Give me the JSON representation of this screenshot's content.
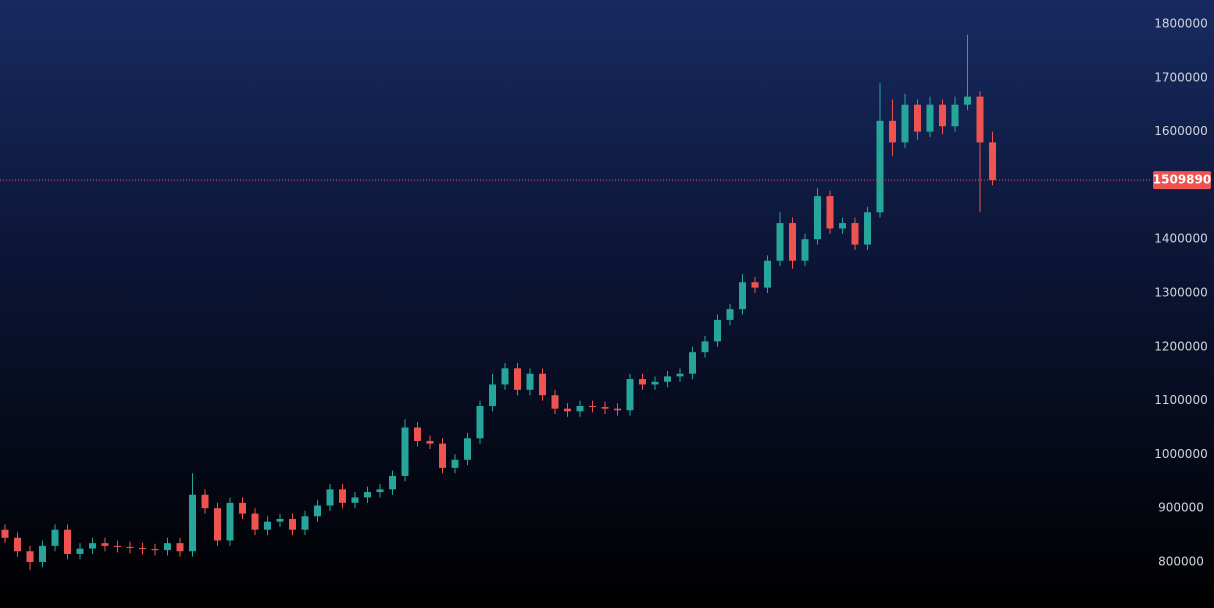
{
  "chart_data": {
    "type": "candlestick",
    "open": [
      860000,
      845000,
      820000,
      800000,
      830000,
      860000,
      815000,
      825000,
      835000,
      830000,
      828000,
      826000,
      824000,
      822000,
      835000,
      820000,
      925000,
      900000,
      840000,
      910000,
      890000,
      860000,
      875000,
      880000,
      860000,
      885000,
      905000,
      935000,
      910000,
      920000,
      930000,
      935000,
      960000,
      1050000,
      1025000,
      1020000,
      975000,
      990000,
      1030000,
      1090000,
      1130000,
      1160000,
      1120000,
      1150000,
      1110000,
      1085000,
      1080000,
      1090000,
      1088000,
      1085000,
      1082000,
      1140000,
      1130000,
      1135000,
      1145000,
      1150000,
      1190000,
      1210000,
      1250000,
      1270000,
      1320000,
      1310000,
      1360000,
      1430000,
      1360000,
      1400000,
      1480000,
      1420000,
      1430000,
      1390000,
      1450000,
      1620000,
      1580000,
      1650000,
      1600000,
      1650000,
      1610000,
      1650000,
      1665000,
      1580000
    ],
    "high": [
      870000,
      855000,
      830000,
      840000,
      870000,
      870000,
      835000,
      845000,
      845000,
      840000,
      838000,
      836000,
      834000,
      845000,
      845000,
      965000,
      935000,
      910000,
      920000,
      920000,
      900000,
      885000,
      890000,
      890000,
      895000,
      915000,
      945000,
      945000,
      930000,
      940000,
      945000,
      970000,
      1065000,
      1060000,
      1035000,
      1030000,
      1000000,
      1040000,
      1100000,
      1150000,
      1170000,
      1170000,
      1160000,
      1160000,
      1120000,
      1095000,
      1100000,
      1100000,
      1098000,
      1095000,
      1150000,
      1150000,
      1145000,
      1155000,
      1160000,
      1200000,
      1220000,
      1260000,
      1280000,
      1335000,
      1330000,
      1370000,
      1450000,
      1440000,
      1410000,
      1495000,
      1490000,
      1440000,
      1440000,
      1460000,
      1690000,
      1660000,
      1670000,
      1660000,
      1665000,
      1660000,
      1665000,
      1780000,
      1675000,
      1600000
    ],
    "low": [
      835000,
      810000,
      785000,
      790000,
      820000,
      805000,
      805000,
      815000,
      820000,
      818000,
      816000,
      814000,
      812000,
      812000,
      810000,
      810000,
      890000,
      830000,
      830000,
      880000,
      850000,
      850000,
      865000,
      850000,
      850000,
      875000,
      895000,
      900000,
      900000,
      910000,
      920000,
      925000,
      950000,
      1015000,
      1010000,
      965000,
      965000,
      980000,
      1020000,
      1080000,
      1120000,
      1110000,
      1110000,
      1100000,
      1075000,
      1070000,
      1070000,
      1078000,
      1075000,
      1072000,
      1072000,
      1120000,
      1120000,
      1125000,
      1135000,
      1140000,
      1180000,
      1200000,
      1240000,
      1260000,
      1300000,
      1300000,
      1350000,
      1345000,
      1350000,
      1390000,
      1410000,
      1410000,
      1380000,
      1380000,
      1440000,
      1555000,
      1570000,
      1585000,
      1590000,
      1595000,
      1600000,
      1640000,
      1450000,
      1500000
    ],
    "close": [
      845000,
      820000,
      800000,
      830000,
      860000,
      815000,
      825000,
      835000,
      830000,
      828000,
      826000,
      824000,
      822000,
      835000,
      820000,
      925000,
      900000,
      840000,
      910000,
      890000,
      860000,
      875000,
      880000,
      860000,
      885000,
      905000,
      935000,
      910000,
      920000,
      930000,
      935000,
      960000,
      1050000,
      1025000,
      1020000,
      975000,
      990000,
      1030000,
      1090000,
      1130000,
      1160000,
      1120000,
      1150000,
      1110000,
      1085000,
      1080000,
      1090000,
      1088000,
      1085000,
      1082000,
      1140000,
      1130000,
      1135000,
      1145000,
      1150000,
      1190000,
      1210000,
      1250000,
      1270000,
      1320000,
      1310000,
      1360000,
      1430000,
      1360000,
      1400000,
      1480000,
      1420000,
      1430000,
      1390000,
      1450000,
      1620000,
      1580000,
      1650000,
      1600000,
      1650000,
      1610000,
      1650000,
      1665000,
      1580000,
      1509890
    ],
    "up_color": "#26a69a",
    "down_color": "#ef5350",
    "last_price": 1509890,
    "ylim": [
      714500,
      1844600
    ],
    "yticks": [
      800000,
      900000,
      1000000,
      1100000,
      1200000,
      1300000,
      1400000,
      1500000,
      1600000,
      1700000,
      1800000
    ]
  }
}
